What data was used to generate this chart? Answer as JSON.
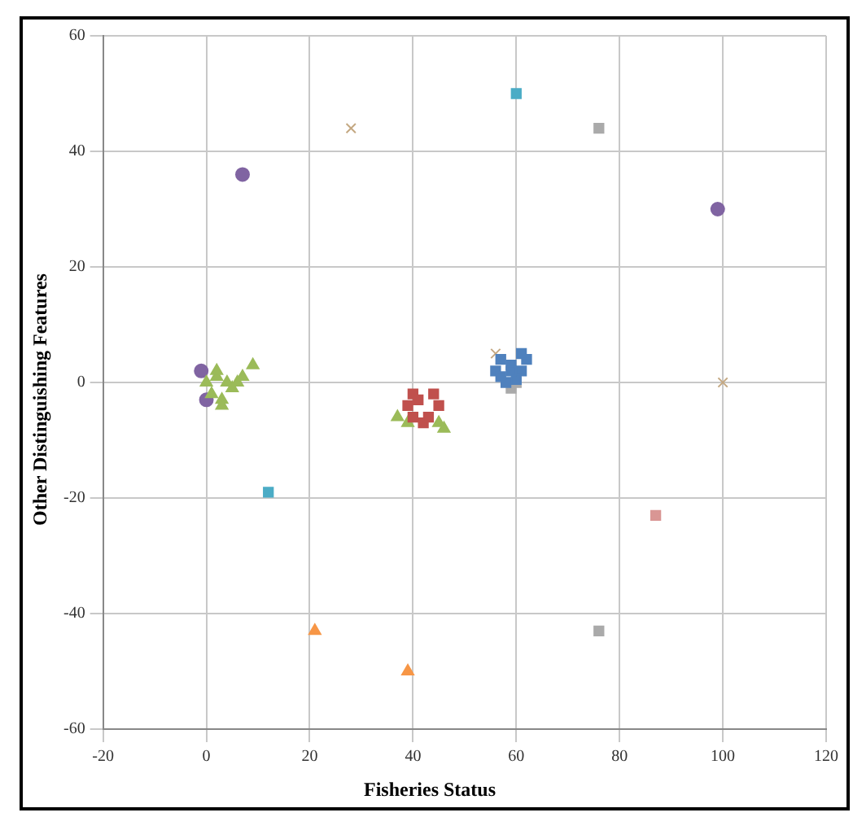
{
  "chart_data": {
    "type": "scatter",
    "xlabel": "Fisheries Status",
    "ylabel": "Other Distinguishing Features",
    "xlim": [
      -20,
      120
    ],
    "xticks": [
      -20,
      0,
      20,
      40,
      60,
      80,
      100,
      120
    ],
    "ylim": [
      -60,
      60
    ],
    "yticks": [
      -60,
      -40,
      -20,
      0,
      20,
      40,
      60
    ],
    "grid": true,
    "legend": false,
    "series": [
      {
        "color": "#4f81bd",
        "marker": "square",
        "x": [
          56,
          57,
          59,
          61,
          62,
          58,
          60,
          61,
          57,
          59
        ],
        "values": [
          2,
          4,
          3,
          2,
          4,
          0,
          0.5,
          5,
          1,
          2
        ]
      },
      {
        "color": "#c0504d",
        "marker": "square",
        "x": [
          39,
          40,
          44,
          45,
          42,
          40,
          41,
          43
        ],
        "values": [
          -4,
          -2,
          -2,
          -4,
          -7,
          -6,
          -3,
          -6
        ]
      },
      {
        "color": "#9bbb59",
        "marker": "triangle",
        "x": [
          0,
          1,
          2,
          3,
          4,
          5,
          6,
          2,
          3,
          7,
          9,
          37,
          39,
          45,
          46
        ],
        "values": [
          0,
          -2,
          1,
          -3,
          0,
          -1,
          0,
          2,
          -4,
          1,
          3,
          -6,
          -7,
          -7,
          -8
        ]
      },
      {
        "color": "#8064a2",
        "marker": "circle",
        "x": [
          7,
          -1,
          0,
          99
        ],
        "values": [
          36,
          2,
          -3,
          30
        ]
      },
      {
        "color": "#4bacc6",
        "marker": "square",
        "x": [
          60,
          12
        ],
        "values": [
          50,
          -19
        ]
      },
      {
        "color": "#f79646",
        "marker": "triangle",
        "x": [
          21,
          39
        ],
        "values": [
          -43,
          -50
        ]
      },
      {
        "color": "#aaaaaa",
        "marker": "square",
        "x": [
          76,
          76,
          59,
          60
        ],
        "values": [
          44,
          -43,
          -1,
          0
        ]
      },
      {
        "color": "#c4a882",
        "marker": "cross",
        "x": [
          28,
          56,
          100
        ],
        "values": [
          44,
          5,
          0
        ]
      },
      {
        "color": "#d99694",
        "marker": "square",
        "x": [
          87
        ],
        "values": [
          -23
        ]
      }
    ]
  }
}
